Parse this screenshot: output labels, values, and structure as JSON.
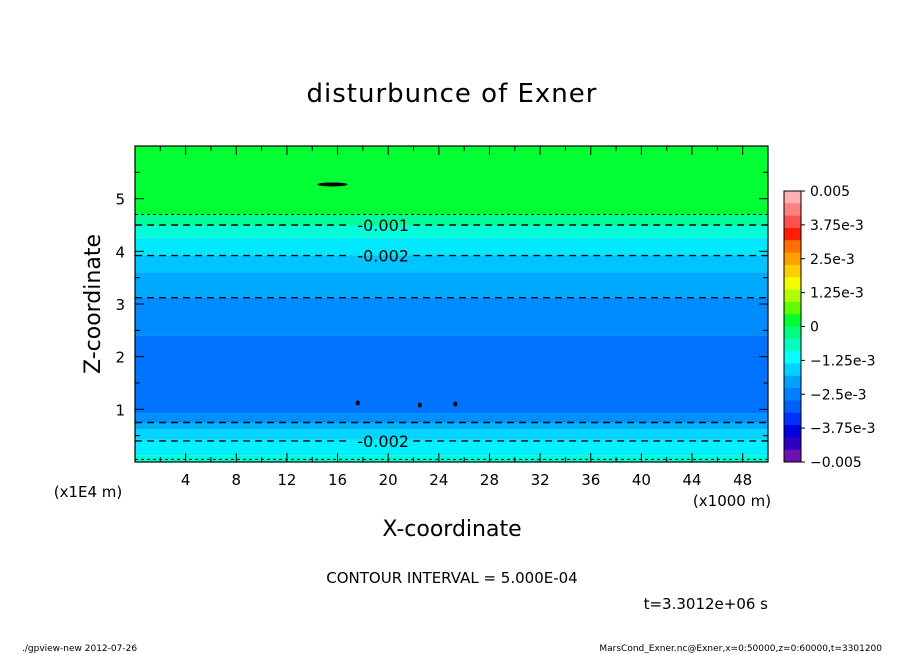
{
  "chart_data": {
    "type": "heatmap",
    "title": "disturbunce of Exner",
    "xlabel": "X-coordinate",
    "ylabel": "Z-coordinate",
    "x_unit": "(x1000 m)",
    "y_unit": "(x1E4 m)",
    "xlim": [
      0,
      50
    ],
    "ylim": [
      0,
      6
    ],
    "x_ticks": [
      "4",
      "8",
      "12",
      "16",
      "20",
      "24",
      "28",
      "32",
      "36",
      "40",
      "44",
      "48"
    ],
    "y_ticks": [
      "1",
      "2",
      "3",
      "4",
      "5"
    ],
    "grid": false,
    "legend": "right colorbar",
    "colorbar": {
      "labels": [
        "0.005",
        "3.75e-3",
        "2.5e-3",
        "1.25e-3",
        "0",
        "−1.25e-3",
        "−2.5e-3",
        "−3.75e-3",
        "−0.005"
      ],
      "colors": [
        "#ffb0b0",
        "#ff8080",
        "#ff5050",
        "#ff1e00",
        "#ff7000",
        "#ffa000",
        "#ffd000",
        "#f0ff00",
        "#b0ff00",
        "#60ff00",
        "#00ff30",
        "#00ff80",
        "#00ffc0",
        "#00ffff",
        "#00d0ff",
        "#00a0ff",
        "#0080ff",
        "#0060ff",
        "#0030ff",
        "#0000e0",
        "#3000c0",
        "#7010b0"
      ]
    },
    "bands": [
      {
        "z_top": 6.0,
        "z_bottom": 4.7,
        "value": "0 to -5e-4",
        "color": "#00ff33"
      },
      {
        "z_top": 4.7,
        "z_bottom": 4.5,
        "value": "-5e-4 to -1e-3",
        "color": "#00ff99"
      },
      {
        "z_top": 4.5,
        "z_bottom": 4.25,
        "value": "-1e-3 to -1.25e-3",
        "color": "#00ffd8"
      },
      {
        "z_top": 4.25,
        "z_bottom": 3.92,
        "value": "-1.25e-3 to -2e-3",
        "color": "#00e8ff"
      },
      {
        "z_top": 3.92,
        "z_bottom": 3.6,
        "value": "-2e-3 to -2.5e-3",
        "color": "#00c4ff"
      },
      {
        "z_top": 3.6,
        "z_bottom": 3.12,
        "value": "-2.5e-3 to -3e-3",
        "color": "#00aaff"
      },
      {
        "z_top": 3.12,
        "z_bottom": 2.4,
        "value": "-3e-3 to -3.5e-3",
        "color": "#008cff"
      },
      {
        "z_top": 2.4,
        "z_bottom": 0.93,
        "value": "-3.5e-3 to -3.75e-3",
        "color": "#0073ff"
      },
      {
        "z_top": 0.93,
        "z_bottom": 0.75,
        "value": "-3e-3",
        "color": "#0090ff"
      },
      {
        "z_top": 0.75,
        "z_bottom": 0.62,
        "value": "-2.5e-3",
        "color": "#00b0ff"
      },
      {
        "z_top": 0.62,
        "z_bottom": 0.42,
        "value": "-2e-3",
        "color": "#00d4ff"
      },
      {
        "z_top": 0.42,
        "z_bottom": 0.12,
        "value": "-1.25e-3",
        "color": "#00f0ff"
      },
      {
        "z_top": 0.12,
        "z_bottom": 0.0,
        "value": "-1e-3",
        "color": "#00ffd0"
      }
    ],
    "contours": [
      {
        "z": 4.7,
        "label": ""
      },
      {
        "z": 4.5,
        "label": "-0.001",
        "label_x": 19.6
      },
      {
        "z": 3.92,
        "label": "-0.002",
        "label_x": 19.6
      },
      {
        "z": 3.12,
        "label": ""
      },
      {
        "z": 0.75,
        "label": ""
      },
      {
        "z": 0.4,
        "label": "-0.002",
        "label_x": 19.6
      },
      {
        "z": 0.05,
        "label": ""
      }
    ],
    "annotations": {
      "contour_interval": "CONTOUR INTERVAL = 5.000E-04",
      "time": "t=3.3012e+06 s"
    }
  },
  "footer": {
    "left": "./gpview-new   2012-07-26",
    "right": "MarsCond_Exner.nc@Exner,x=0:50000,z=0:60000,t=3301200"
  }
}
